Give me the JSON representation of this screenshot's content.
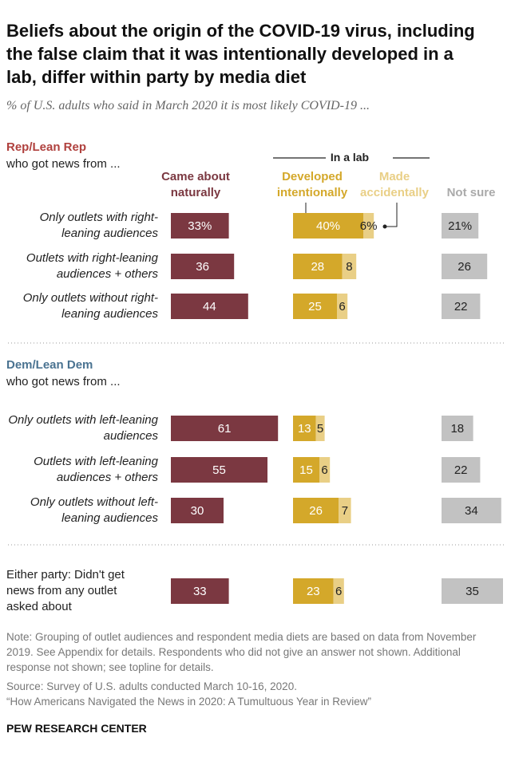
{
  "chart_data": {
    "type": "bar",
    "title": "Beliefs about the origin of the COVID-19 virus, including the false claim that it was intentionally developed in a lab, differ within party by media diet",
    "subtitle": "% of U.S. adults who said in March 2020 it is most likely COVID-19 ...",
    "groups": [
      {
        "title": "Rep/Lean Rep",
        "subtitle": "who got news from ...",
        "color": "#b0413e"
      },
      {
        "title": "Dem/Lean Dem",
        "subtitle": "who got news from ...",
        "color": "#4a7391"
      }
    ],
    "lab_header": "In a lab",
    "categories": [
      "Only outlets with right-leaning audiences",
      "Outlets with right-leaning audiences + others",
      "Only outlets without right-leaning audiences",
      "Only outlets with left-leaning audiences",
      "Outlets with left-leaning audiences + others",
      "Only outlets without left-leaning audiences",
      "Either party: Didn't get news from any outlet asked about"
    ],
    "series": [
      {
        "name": "Came about naturally",
        "color": "#7b3841",
        "values": [
          33,
          36,
          44,
          61,
          55,
          30,
          33
        ],
        "value_labels": [
          "33%",
          "36",
          "44",
          "61",
          "55",
          "30",
          "33"
        ]
      },
      {
        "name": "Developed intentionally",
        "color": "#d4a82a",
        "values": [
          40,
          28,
          25,
          13,
          15,
          26,
          23
        ],
        "value_labels": [
          "40%",
          "28",
          "25",
          "13",
          "15",
          "26",
          "23"
        ]
      },
      {
        "name": "Made accidentally",
        "color": "#e9cf86",
        "values": [
          6,
          8,
          6,
          5,
          6,
          7,
          6
        ],
        "value_labels": [
          "6%",
          "8",
          "6",
          "5",
          "6",
          "7",
          "6"
        ]
      },
      {
        "name": "Not sure",
        "color": "#c2c2c2",
        "values": [
          21,
          26,
          22,
          18,
          22,
          34,
          35
        ],
        "value_labels": [
          "21%",
          "26",
          "22",
          "18",
          "22",
          "34",
          "35"
        ]
      }
    ],
    "note": "Note: Grouping of outlet audiences and respondent media diets are based on data from November 2019. See Appendix for details. Respondents who did not give an answer not shown. Additional response not shown; see topline for details.",
    "source": "Source: Survey of U.S. adults conducted March 10-16, 2020.",
    "citation": "“How Americans Navigated the News in 2020: A Tumultuous Year in Review”",
    "credit": "PEW RESEARCH CENTER"
  }
}
